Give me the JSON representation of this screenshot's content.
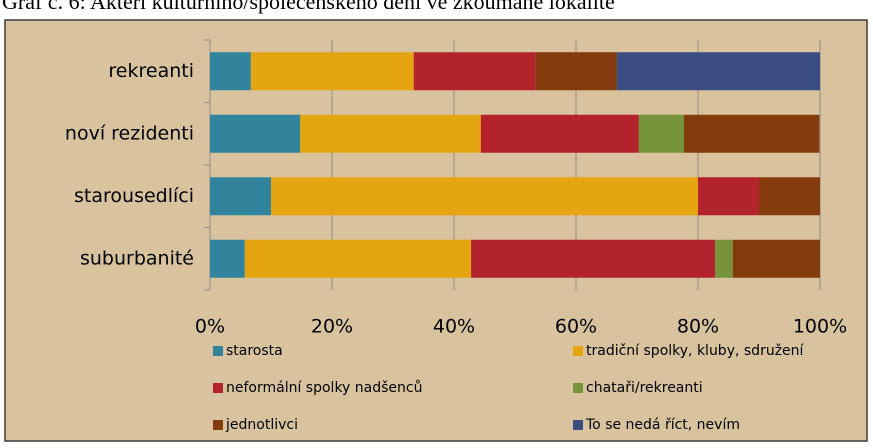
{
  "chart_data": {
    "type": "stacked_hbar",
    "title": "Graf č. 6: Aktéři kulturního/společenského dění ve zkoumané lokalitě",
    "categories": [
      "rekreanti",
      "noví rezidenti",
      "starousedlíci",
      "suburbanité"
    ],
    "series": [
      {
        "name": "starosta",
        "color": "#31849b",
        "values": [
          6.7,
          14.8,
          10,
          5.7
        ]
      },
      {
        "name": "tradiční spolky, kluby, sdružení",
        "color": "#e3a511",
        "values": [
          26.7,
          29.6,
          70,
          37.1
        ]
      },
      {
        "name": "neformální spolky nadšenců",
        "color": "#b3232b",
        "values": [
          20,
          25.9,
          10,
          40
        ]
      },
      {
        "name": "chataři/rekreanti",
        "color": "#77933c",
        "values": [
          0,
          7.4,
          0,
          2.9
        ]
      },
      {
        "name": "jednotlivci",
        "color": "#843c0c",
        "values": [
          13.3,
          22.2,
          10,
          14.3
        ]
      },
      {
        "name": "To se nedá říct, nevím",
        "color": "#3b4e82",
        "values": [
          33.3,
          0,
          0,
          0
        ]
      }
    ],
    "xlim": [
      0,
      100
    ],
    "xticks": [
      {
        "value": 0,
        "label": "0%"
      },
      {
        "value": 20,
        "label": "20%"
      },
      {
        "value": 40,
        "label": "40%"
      },
      {
        "value": 60,
        "label": "60%"
      },
      {
        "value": 80,
        "label": "80%"
      },
      {
        "value": 100,
        "label": "100%"
      }
    ],
    "grid": true
  }
}
